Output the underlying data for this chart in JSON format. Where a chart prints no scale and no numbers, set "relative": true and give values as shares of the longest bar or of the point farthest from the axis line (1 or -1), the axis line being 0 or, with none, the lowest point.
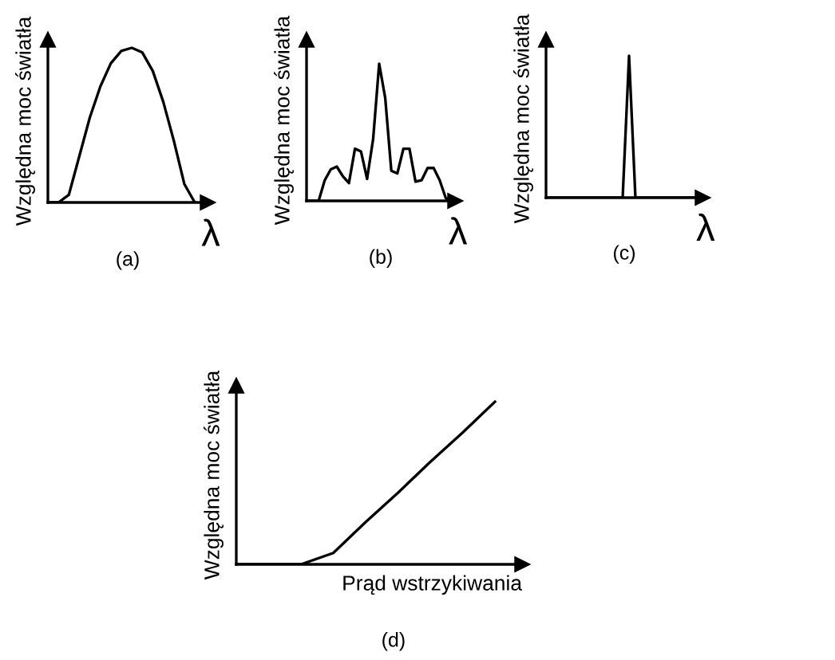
{
  "chart_data": [
    {
      "type": "line",
      "relative": true,
      "xlabel": "λ",
      "ylabel": "Względna moc światła",
      "annotations": [
        "(a)"
      ],
      "categories": [
        null,
        null,
        null,
        null,
        null,
        null,
        null,
        null,
        null,
        null,
        null,
        null,
        null,
        null,
        null
      ],
      "series": [
        {
          "color": "#000000",
          "values": [
            0,
            0,
            0.05,
            0.3,
            0.55,
            0.75,
            0.9,
            0.98,
            1,
            0.97,
            0.85,
            0.65,
            0.4,
            0.12,
            0
          ]
        }
      ]
    },
    {
      "type": "line",
      "relative": true,
      "xlabel": "λ",
      "ylabel": "Względna moc światła",
      "annotations": [
        "(b)"
      ],
      "categories": [
        null,
        null,
        null,
        null,
        null,
        null,
        null,
        null,
        null,
        null,
        null,
        null,
        null,
        null,
        null,
        null,
        null,
        null,
        null,
        null,
        null,
        null,
        null,
        null,
        null
      ],
      "series": [
        {
          "color": "#000000",
          "values": [
            0,
            0,
            0,
            0.15,
            0.23,
            0.25,
            0.18,
            0.13,
            0.38,
            0.36,
            0.16,
            0.45,
            1,
            0.75,
            0.22,
            0.2,
            0.38,
            0.38,
            0.14,
            0.15,
            0.24,
            0.24,
            0.15,
            0.02,
            0
          ]
        }
      ]
    },
    {
      "type": "line",
      "relative": true,
      "xlabel": "λ",
      "ylabel": "Względna moc światła",
      "annotations": [
        "(c)"
      ],
      "categories": [
        null,
        null,
        null,
        null,
        null,
        null,
        null,
        null,
        null,
        null,
        null,
        null,
        null,
        null,
        null,
        null,
        null,
        null,
        null,
        null,
        null,
        null,
        null,
        null,
        null,
        null
      ],
      "series": [
        {
          "color": "#000000",
          "values": [
            0,
            0,
            0,
            0,
            0,
            0,
            0,
            0,
            0,
            0,
            0,
            0,
            0,
            1,
            0,
            0,
            0,
            0,
            0,
            0,
            0,
            0,
            0,
            0,
            0,
            0
          ]
        }
      ]
    },
    {
      "type": "line",
      "relative": true,
      "xlabel": "Prąd wstrzykiwania",
      "ylabel": "Względna moc światła",
      "annotations": [
        "(d)"
      ],
      "categories": [
        null,
        null,
        null,
        null,
        null,
        null,
        null,
        null,
        null
      ],
      "series": [
        {
          "color": "#000000",
          "values": [
            0,
            0,
            0,
            0.07,
            0.26,
            0.44,
            0.63,
            0.81,
            1
          ]
        }
      ]
    }
  ]
}
